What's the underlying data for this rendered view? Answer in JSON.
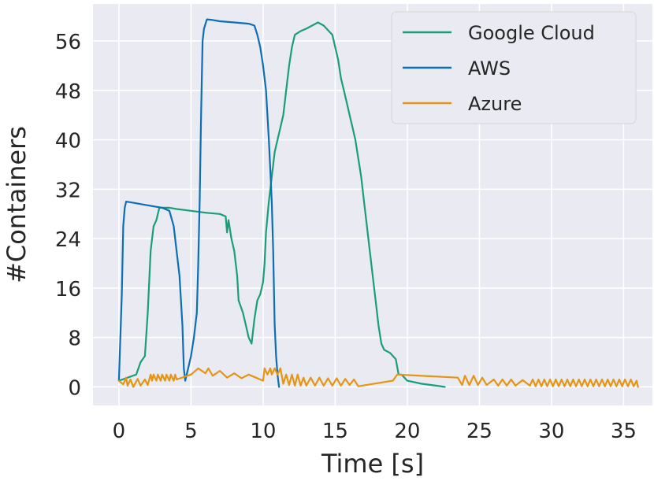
{
  "chart_data": {
    "type": "line",
    "xlabel": "Time [s]",
    "ylabel": "#Containers",
    "xlim": [
      -1.8,
      37.0
    ],
    "ylim": [
      -3,
      62
    ],
    "xticks": [
      0,
      5,
      10,
      15,
      20,
      25,
      30,
      35
    ],
    "yticks": [
      0,
      8,
      16,
      24,
      32,
      40,
      48,
      56
    ],
    "grid": true,
    "legend_position": "top-right",
    "series": [
      {
        "name": "Google Cloud",
        "color": "#1a9e77",
        "points": [
          [
            0.0,
            1
          ],
          [
            1.2,
            2
          ],
          [
            1.5,
            4
          ],
          [
            1.8,
            5
          ],
          [
            2.0,
            12
          ],
          [
            2.2,
            22
          ],
          [
            2.4,
            26
          ],
          [
            2.6,
            27
          ],
          [
            2.8,
            29
          ],
          [
            3.0,
            29
          ],
          [
            3.5,
            29
          ],
          [
            4.0,
            28.8
          ],
          [
            5.0,
            28.5
          ],
          [
            6.0,
            28.2
          ],
          [
            7.0,
            28
          ],
          [
            7.4,
            27.6
          ],
          [
            7.5,
            25
          ],
          [
            7.6,
            27
          ],
          [
            7.8,
            24
          ],
          [
            8.0,
            22
          ],
          [
            8.2,
            18
          ],
          [
            8.3,
            14
          ],
          [
            8.6,
            12
          ],
          [
            8.8,
            10
          ],
          [
            9.0,
            8
          ],
          [
            9.2,
            7
          ],
          [
            9.4,
            11
          ],
          [
            9.6,
            14
          ],
          [
            9.8,
            15
          ],
          [
            10.0,
            17
          ],
          [
            10.1,
            20
          ],
          [
            10.2,
            25
          ],
          [
            10.4,
            30
          ],
          [
            10.6,
            34
          ],
          [
            10.8,
            38
          ],
          [
            11.0,
            40
          ],
          [
            11.2,
            42
          ],
          [
            11.4,
            44
          ],
          [
            11.6,
            48
          ],
          [
            11.8,
            52
          ],
          [
            12.0,
            55
          ],
          [
            12.2,
            57
          ],
          [
            12.6,
            57.6
          ],
          [
            13.0,
            58
          ],
          [
            13.4,
            58.5
          ],
          [
            13.8,
            59
          ],
          [
            14.2,
            58.5
          ],
          [
            14.8,
            57
          ],
          [
            15.0,
            55
          ],
          [
            15.2,
            53
          ],
          [
            15.4,
            50
          ],
          [
            15.6,
            48
          ],
          [
            15.8,
            46
          ],
          [
            16.0,
            44
          ],
          [
            16.2,
            42
          ],
          [
            16.4,
            40
          ],
          [
            16.6,
            37
          ],
          [
            16.8,
            34
          ],
          [
            17.0,
            30
          ],
          [
            17.2,
            26
          ],
          [
            17.4,
            22
          ],
          [
            17.6,
            18
          ],
          [
            17.8,
            14
          ],
          [
            18.0,
            10
          ],
          [
            18.2,
            7
          ],
          [
            18.4,
            6
          ],
          [
            18.8,
            5.5
          ],
          [
            19.2,
            4.5
          ],
          [
            19.4,
            2
          ],
          [
            19.6,
            2
          ],
          [
            20.0,
            1
          ],
          [
            21.0,
            0.5
          ],
          [
            22.0,
            0.2
          ],
          [
            22.6,
            0
          ]
        ]
      },
      {
        "name": "AWS",
        "color": "#0c6fb4",
        "points": [
          [
            0.0,
            1
          ],
          [
            0.2,
            15
          ],
          [
            0.3,
            26
          ],
          [
            0.4,
            29
          ],
          [
            0.5,
            30
          ],
          [
            1.0,
            29.8
          ],
          [
            2.0,
            29.4
          ],
          [
            3.0,
            29
          ],
          [
            3.5,
            28.5
          ],
          [
            3.8,
            26
          ],
          [
            4.0,
            22
          ],
          [
            4.2,
            18
          ],
          [
            4.4,
            10
          ],
          [
            4.5,
            3
          ],
          [
            4.6,
            1
          ],
          [
            4.8,
            3
          ],
          [
            5.0,
            5
          ],
          [
            5.2,
            8
          ],
          [
            5.4,
            12
          ],
          [
            5.5,
            20
          ],
          [
            5.6,
            30
          ],
          [
            5.7,
            44
          ],
          [
            5.8,
            56
          ],
          [
            5.9,
            58
          ],
          [
            6.1,
            59.5
          ],
          [
            6.5,
            59.4
          ],
          [
            7.0,
            59.2
          ],
          [
            8.0,
            59
          ],
          [
            9.0,
            58.8
          ],
          [
            9.4,
            58.5
          ],
          [
            9.6,
            57
          ],
          [
            9.8,
            55
          ],
          [
            10.0,
            52
          ],
          [
            10.2,
            48
          ],
          [
            10.4,
            40
          ],
          [
            10.5,
            35
          ],
          [
            10.6,
            30
          ],
          [
            10.7,
            22
          ],
          [
            10.8,
            10
          ],
          [
            10.9,
            5
          ],
          [
            11.0,
            2
          ],
          [
            11.1,
            0
          ]
        ]
      },
      {
        "name": "Azure",
        "color": "#e69512",
        "points": [
          [
            0.0,
            1
          ],
          [
            0.3,
            0.4
          ],
          [
            0.5,
            1.5
          ],
          [
            0.6,
            0.2
          ],
          [
            0.8,
            1.2
          ],
          [
            1.0,
            0
          ],
          [
            1.3,
            1.3
          ],
          [
            1.5,
            0.2
          ],
          [
            1.8,
            1.2
          ],
          [
            2.0,
            0.3
          ],
          [
            2.2,
            2
          ],
          [
            2.3,
            1
          ],
          [
            2.4,
            2
          ],
          [
            2.6,
            1
          ],
          [
            2.7,
            2
          ],
          [
            2.9,
            1
          ],
          [
            3.0,
            2
          ],
          [
            3.2,
            1
          ],
          [
            3.3,
            2
          ],
          [
            3.5,
            1
          ],
          [
            3.6,
            2
          ],
          [
            3.8,
            1
          ],
          [
            3.9,
            2
          ],
          [
            4.0,
            1.2
          ],
          [
            5.0,
            2
          ],
          [
            5.5,
            3
          ],
          [
            6.0,
            2.2
          ],
          [
            6.2,
            3
          ],
          [
            6.5,
            1.8
          ],
          [
            7.0,
            2.6
          ],
          [
            7.5,
            1.5
          ],
          [
            8.0,
            2.2
          ],
          [
            8.5,
            1.4
          ],
          [
            9.0,
            2
          ],
          [
            9.5,
            1.5
          ],
          [
            10.0,
            1
          ],
          [
            10.1,
            3
          ],
          [
            10.3,
            2
          ],
          [
            10.5,
            3
          ],
          [
            10.6,
            2
          ],
          [
            10.8,
            3
          ],
          [
            11.0,
            2
          ],
          [
            11.2,
            3
          ],
          [
            11.4,
            0.5
          ],
          [
            11.6,
            2
          ],
          [
            11.8,
            0.3
          ],
          [
            12.0,
            2
          ],
          [
            12.2,
            0.2
          ],
          [
            12.4,
            2
          ],
          [
            12.6,
            0.2
          ],
          [
            12.8,
            1.5
          ],
          [
            13.0,
            0.2
          ],
          [
            13.3,
            1.5
          ],
          [
            13.6,
            0.2
          ],
          [
            13.9,
            1.5
          ],
          [
            14.2,
            0.2
          ],
          [
            14.5,
            1.4
          ],
          [
            14.8,
            0.2
          ],
          [
            15.1,
            1.4
          ],
          [
            15.4,
            0.2
          ],
          [
            15.7,
            1.3
          ],
          [
            16.0,
            0.3
          ],
          [
            16.3,
            1.2
          ],
          [
            16.6,
            0.1
          ],
          [
            19.0,
            1
          ],
          [
            19.3,
            2
          ],
          [
            23.5,
            1.5
          ],
          [
            23.8,
            0.3
          ],
          [
            24.0,
            1.8
          ],
          [
            24.3,
            0.3
          ],
          [
            24.6,
            1.8
          ],
          [
            24.9,
            0.3
          ],
          [
            25.2,
            1.5
          ],
          [
            25.5,
            0.3
          ],
          [
            26.0,
            1.2
          ],
          [
            26.3,
            0.2
          ],
          [
            26.6,
            1.2
          ],
          [
            26.9,
            0.2
          ],
          [
            27.2,
            1.2
          ],
          [
            27.5,
            0.2
          ],
          [
            28.0,
            1.1
          ],
          [
            28.5,
            0.2
          ],
          [
            28.7,
            1.2
          ],
          [
            28.9,
            0.1
          ],
          [
            29.1,
            1.2
          ],
          [
            29.3,
            0.1
          ],
          [
            29.5,
            1.2
          ],
          [
            29.7,
            0.1
          ],
          [
            29.9,
            1.2
          ],
          [
            30.1,
            0.1
          ],
          [
            30.3,
            1.2
          ],
          [
            30.5,
            0.1
          ],
          [
            30.7,
            1.2
          ],
          [
            30.9,
            0.1
          ],
          [
            31.1,
            1.2
          ],
          [
            31.3,
            0.1
          ],
          [
            31.5,
            1.2
          ],
          [
            31.7,
            0.1
          ],
          [
            31.9,
            1.2
          ],
          [
            32.1,
            0.1
          ],
          [
            32.3,
            1.2
          ],
          [
            32.5,
            0.1
          ],
          [
            32.7,
            1.2
          ],
          [
            32.9,
            0.1
          ],
          [
            33.1,
            1.2
          ],
          [
            33.3,
            0.1
          ],
          [
            33.5,
            1.2
          ],
          [
            33.7,
            0.1
          ],
          [
            33.9,
            1.2
          ],
          [
            34.1,
            0.1
          ],
          [
            34.3,
            1.2
          ],
          [
            34.5,
            0.1
          ],
          [
            34.7,
            1.2
          ],
          [
            34.9,
            0.1
          ],
          [
            35.1,
            1.2
          ],
          [
            35.3,
            0.1
          ],
          [
            35.5,
            1.2
          ],
          [
            35.7,
            0.1
          ],
          [
            35.9,
            1
          ],
          [
            36.0,
            0
          ]
        ]
      }
    ]
  }
}
